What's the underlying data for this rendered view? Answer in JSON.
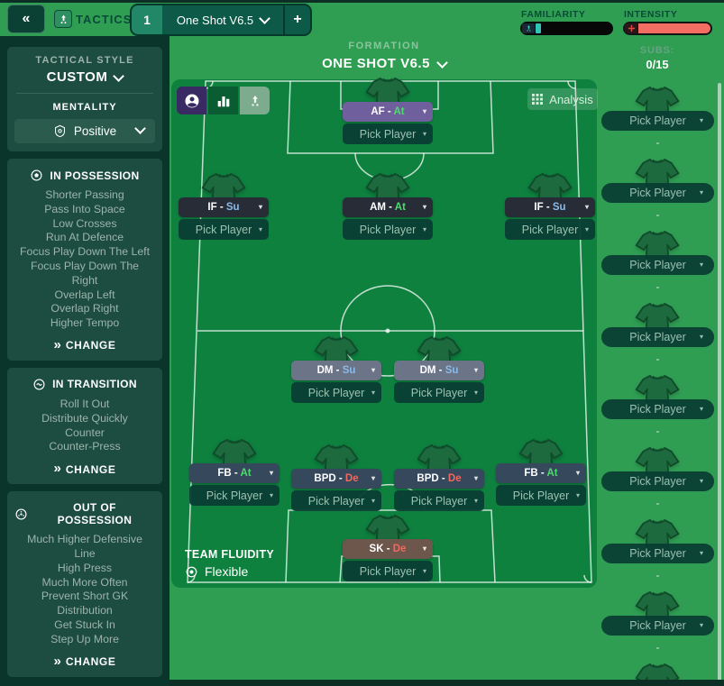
{
  "colors": {
    "bg_green": "#2f9e53",
    "pitch_green": "#0e813f",
    "sidebar_bg": "#0a352b",
    "panel_teal": "#1d4c41",
    "duty_At": "#4bdd6c",
    "duty_Su": "#8abbec",
    "duty_De": "#f2685f",
    "familiarity_teal": "#2ec4b6",
    "intensity_red": "#f26d62"
  },
  "top_bar": {
    "back_icon": "«",
    "tactics_label": "TACTICS",
    "tab_number": "1",
    "tab_title": "One Shot V6.5",
    "add_tab_label": "+",
    "familiarity_label": "FAMILIARITY",
    "familiarity_percent": 6,
    "intensity_label": "INTENSITY",
    "intensity_percent": 100
  },
  "sidebar": {
    "tactical_style_label": "TACTICAL STYLE",
    "tactical_style_value": "CUSTOM",
    "mentality_label": "MENTALITY",
    "mentality_value": "Positive",
    "panels": [
      {
        "title": "IN POSSESSION",
        "icon": "ball-icon",
        "items": [
          "Shorter Passing",
          "Pass Into Space",
          "Low Crosses",
          "Run At Defence",
          "Focus Play Down The Left",
          "Focus Play Down The Right",
          "Overlap Left",
          "Overlap Right",
          "Higher Tempo"
        ],
        "change_label": "CHANGE"
      },
      {
        "title": "IN TRANSITION",
        "icon": "transition-icon",
        "items": [
          "Roll It Out",
          "Distribute Quickly",
          "Counter",
          "Counter-Press"
        ],
        "change_label": "CHANGE"
      },
      {
        "title": "OUT OF POSSESSION",
        "icon": "out-possession-icon",
        "items": [
          "Much Higher Defensive Line",
          "High Press",
          "Much More Often",
          "Prevent Short GK Distribution",
          "Get Stuck In",
          "Step Up More"
        ],
        "change_label": "CHANGE"
      }
    ]
  },
  "formation": {
    "label": "FORMATION",
    "value": "ONE SHOT V6.5"
  },
  "pitch": {
    "analysis_label": "Analysis",
    "pick_player_label": "Pick Player",
    "team_fluidity_label": "TEAM FLUIDITY",
    "team_fluidity_value": "Flexible",
    "positions": [
      {
        "role": "AF",
        "duty": "At",
        "bar_color": "#6f5f9c"
      },
      {
        "role": "IF",
        "duty": "Su",
        "bar_color": "#272c37"
      },
      {
        "role": "AM",
        "duty": "At",
        "bar_color": "#272c37"
      },
      {
        "role": "IF",
        "duty": "Su",
        "bar_color": "#272c37"
      },
      {
        "role": "DM",
        "duty": "Su",
        "bar_color": "#6c7487"
      },
      {
        "role": "DM",
        "duty": "Su",
        "bar_color": "#6c7487"
      },
      {
        "role": "FB",
        "duty": "At",
        "bar_color": "#35485c"
      },
      {
        "role": "BPD",
        "duty": "De",
        "bar_color": "#35485c"
      },
      {
        "role": "BPD",
        "duty": "De",
        "bar_color": "#35485c"
      },
      {
        "role": "FB",
        "duty": "At",
        "bar_color": "#35485c"
      },
      {
        "role": "SK",
        "duty": "De",
        "bar_color": "#6d564b"
      }
    ]
  },
  "subs": {
    "label": "SUBS:",
    "count": "0/15",
    "pick_player_label": "Pick Player",
    "empty_value": "-",
    "slot_count": 8
  }
}
